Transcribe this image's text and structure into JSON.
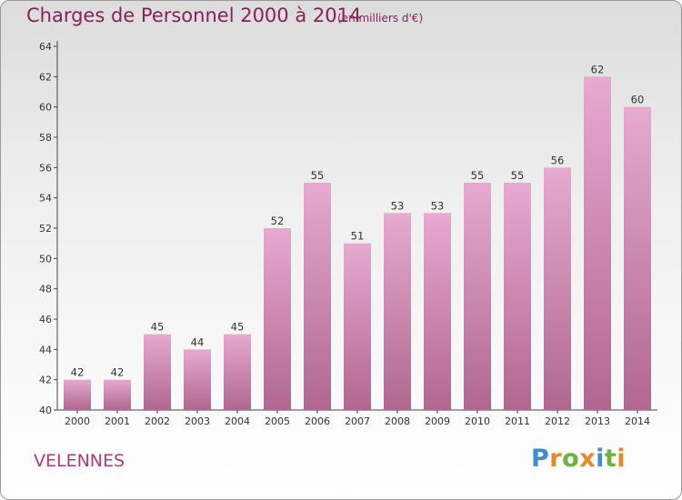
{
  "header": {
    "title": "Charges de Personnel 2000 à 2014",
    "subtitle": "(en milliers d'€)"
  },
  "footer": {
    "city": "VELENNES",
    "brand": "Proxiti"
  },
  "colors": {
    "title": "#8a1f5c",
    "bar_top": "#e6a9cf",
    "bar_bottom": "#b0678f",
    "brand_letters": [
      "#3c8ed0",
      "#e6892b",
      "#6cb33f",
      "#e6892b",
      "#3c8ed0",
      "#6cb33f",
      "#e6892b"
    ]
  },
  "chart_data": {
    "type": "bar",
    "title": "Charges de Personnel 2000 à 2014",
    "subtitle": "(en milliers d'€)",
    "categories": [
      "2000",
      "2001",
      "2002",
      "2003",
      "2004",
      "2005",
      "2006",
      "2007",
      "2008",
      "2009",
      "2010",
      "2011",
      "2012",
      "2013",
      "2014"
    ],
    "values": [
      42,
      42,
      45,
      44,
      45,
      52,
      55,
      51,
      53,
      53,
      55,
      55,
      56,
      62,
      60
    ],
    "xlabel": "",
    "ylabel": "",
    "ylim": [
      40,
      64
    ],
    "yticks": [
      40,
      42,
      44,
      46,
      48,
      50,
      52,
      54,
      56,
      58,
      60,
      62,
      64
    ],
    "grid": false,
    "data_labels": true
  }
}
